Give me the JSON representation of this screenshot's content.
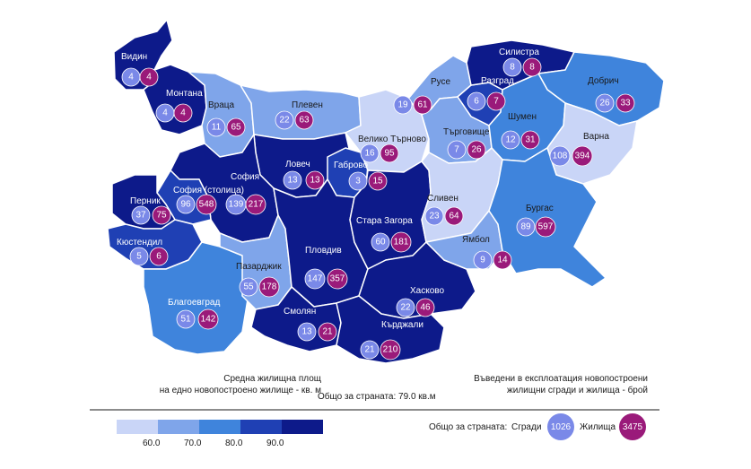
{
  "colors": {
    "c1": "#c9d5f7",
    "c2": "#7fa5ea",
    "c3": "#3f84dc",
    "c4": "#1f40b4",
    "c5": "#0d1a8a",
    "buildings": "#7a89e8",
    "dwellings": "#9a1a7a",
    "border": "#ffffff"
  },
  "regions": [
    {
      "name": "Видин",
      "buildings": "4",
      "dwellings": "4",
      "class": "c5"
    },
    {
      "name": "Монтана",
      "buildings": "4",
      "dwellings": "4",
      "class": "c5"
    },
    {
      "name": "Враца",
      "buildings": "11",
      "dwellings": "65",
      "class": "c2"
    },
    {
      "name": "Плевен",
      "buildings": "22",
      "dwellings": "63",
      "class": "c2"
    },
    {
      "name": "Ловеч",
      "buildings": "13",
      "dwellings": "13",
      "class": "c5"
    },
    {
      "name": "Габрово",
      "buildings": "3",
      "dwellings": "15",
      "class": "c4"
    },
    {
      "name": "Велико Търново",
      "buildings": "16",
      "dwellings": "95",
      "class": "c1"
    },
    {
      "name": "Русе",
      "buildings": "19",
      "dwellings": "61",
      "class": "c2"
    },
    {
      "name": "Разград",
      "buildings": "6",
      "dwellings": "7",
      "class": "c4"
    },
    {
      "name": "Силистра",
      "buildings": "8",
      "dwellings": "8",
      "class": "c5"
    },
    {
      "name": "Добрич",
      "buildings": "26",
      "dwellings": "33",
      "class": "c3"
    },
    {
      "name": "Търговище",
      "buildings": "7",
      "dwellings": "26",
      "class": "c2"
    },
    {
      "name": "Шумен",
      "buildings": "12",
      "dwellings": "31",
      "class": "c3"
    },
    {
      "name": "Варна",
      "buildings": "108",
      "dwellings": "394",
      "class": "c1"
    },
    {
      "name": "София",
      "buildings": "139",
      "dwellings": "217",
      "class": "c5"
    },
    {
      "name": "София (столица)",
      "buildings": "96",
      "dwellings": "548",
      "class": "c4"
    },
    {
      "name": "Перник",
      "buildings": "37",
      "dwellings": "75",
      "class": "c5"
    },
    {
      "name": "Кюстендил",
      "buildings": "5",
      "dwellings": "6",
      "class": "c4"
    },
    {
      "name": "Благоевград",
      "buildings": "51",
      "dwellings": "142",
      "class": "c3"
    },
    {
      "name": "Пазарджик",
      "buildings": "55",
      "dwellings": "178",
      "class": "c2"
    },
    {
      "name": "Пловдив",
      "buildings": "147",
      "dwellings": "357",
      "class": "c5"
    },
    {
      "name": "Смолян",
      "buildings": "13",
      "dwellings": "21",
      "class": "c5"
    },
    {
      "name": "Стара Загора",
      "buildings": "60",
      "dwellings": "181",
      "class": "c5"
    },
    {
      "name": "Хасково",
      "buildings": "22",
      "dwellings": "46",
      "class": "c5"
    },
    {
      "name": "Кърджали",
      "buildings": "21",
      "dwellings": "210",
      "class": "c5"
    },
    {
      "name": "Сливен",
      "buildings": "23",
      "dwellings": "64",
      "class": "c1"
    },
    {
      "name": "Ямбол",
      "buildings": "9",
      "dwellings": "14",
      "class": "c2"
    },
    {
      "name": "Бургас",
      "buildings": "89",
      "dwellings": "597",
      "class": "c3"
    }
  ],
  "legend": {
    "area_title_line1": "Средна жилищна площ",
    "area_title_line2": "на едно новопостроено жилище - кв. м",
    "country_total_area": "Общо за страната: 79.0 кв.м",
    "count_title_line1": "Въведени в експлоатация новопостроени",
    "count_title_line2": "жилищни сгради и жилища - брой",
    "country_total_label": "Общо за страната:",
    "buildings_label": "Сгради",
    "buildings_total": "1026",
    "dwellings_label": "Жилища",
    "dwellings_total": "3475",
    "ticks": [
      "60.0",
      "70.0",
      "80.0",
      "90.0"
    ]
  }
}
